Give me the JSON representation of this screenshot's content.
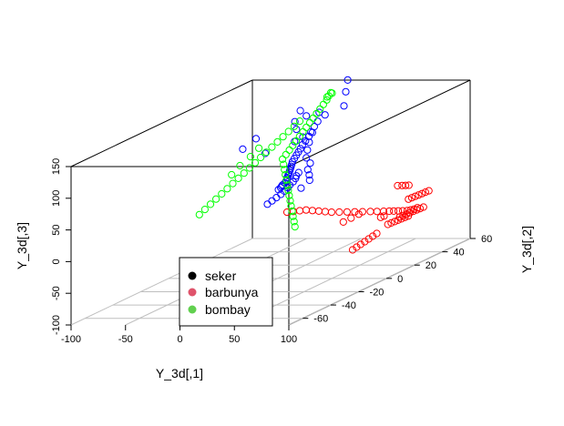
{
  "chart_data": {
    "type": "scatter",
    "projection": "3d",
    "xlabel": "Y_3d[,1]",
    "ylabel": "Y_3d[,2]",
    "zlabel": "Y_3d[,3]",
    "xlim": [
      -100,
      100
    ],
    "ylim": [
      -70,
      60
    ],
    "zlim": [
      -100,
      150
    ],
    "x_ticks": [
      "-100",
      "-50",
      "0",
      "50",
      "100"
    ],
    "y_ticks": [
      "-60",
      "-40",
      "-20",
      "0",
      "20",
      "40",
      "60"
    ],
    "z_ticks": [
      "-100",
      "-50",
      "0",
      "50",
      "100",
      "150"
    ],
    "grid": true,
    "legend_position": "bottom-center",
    "series": [
      {
        "name": "seker",
        "color": "#000000",
        "points": []
      },
      {
        "name": "barbunya",
        "color": "#DF536B",
        "points": []
      },
      {
        "name": "bombay",
        "color": "#61D04F",
        "points": []
      }
    ],
    "extra_series": [
      {
        "color": "#0000FF",
        "points": [
          [
            -9,
            41,
            115
          ],
          [
            -8,
            35,
            111
          ],
          [
            -6,
            31,
            107
          ],
          [
            -4,
            27,
            103
          ],
          [
            -2,
            24,
            99
          ],
          [
            0,
            20,
            96
          ],
          [
            1,
            17,
            93
          ],
          [
            3,
            14,
            90
          ],
          [
            5,
            11,
            88
          ],
          [
            7,
            8,
            86
          ],
          [
            9,
            5,
            84
          ],
          [
            11,
            2,
            82
          ],
          [
            13,
            0,
            80
          ],
          [
            15,
            -2,
            79
          ],
          [
            17,
            -4,
            78
          ],
          [
            19,
            -6,
            77
          ],
          [
            21,
            -8,
            76
          ],
          [
            23,
            -10,
            75
          ],
          [
            25,
            -12,
            75
          ],
          [
            28,
            -15,
            75
          ],
          [
            32,
            -18,
            76
          ],
          [
            36,
            -22,
            77
          ],
          [
            40,
            -26,
            78
          ],
          [
            43,
            -30,
            79
          ],
          [
            46,
            -33,
            80
          ],
          [
            49,
            -36,
            81
          ],
          [
            52,
            -40,
            82
          ],
          [
            45,
            -20,
            88
          ],
          [
            48,
            -24,
            87
          ],
          [
            51,
            -27,
            86
          ],
          [
            54,
            -31,
            85
          ],
          [
            56,
            -35,
            84
          ],
          [
            58,
            -38,
            83
          ],
          [
            60,
            -42,
            82
          ],
          [
            62,
            -46,
            81
          ],
          [
            63,
            -50,
            80
          ],
          [
            64,
            -54,
            79
          ],
          [
            65,
            -58,
            78
          ],
          [
            -12,
            30,
            125
          ],
          [
            -20,
            28,
            118
          ],
          [
            -16,
            26,
            108
          ],
          [
            -13,
            40,
            120
          ],
          [
            -24,
            35,
            128
          ],
          [
            -10,
            20,
            95
          ],
          [
            -5,
            22,
            100
          ],
          [
            0,
            25,
            104
          ],
          [
            6,
            18,
            96
          ],
          [
            12,
            12,
            90
          ],
          [
            20,
            5,
            85
          ],
          [
            30,
            0,
            82
          ],
          [
            38,
            -8,
            80
          ],
          [
            47,
            -14,
            78
          ],
          [
            55,
            -20,
            76
          ],
          [
            60,
            -30,
            74
          ],
          [
            2,
            46,
            124
          ],
          [
            -4,
            52,
            140
          ],
          [
            -15,
            62,
            148
          ],
          [
            4,
            -12,
            110
          ],
          [
            -30,
            8,
            112
          ],
          [
            -32,
            0,
            104
          ]
        ]
      },
      {
        "color": "#FF0000",
        "points": [
          [
            90,
            30,
            -20
          ],
          [
            92,
            26,
            -18
          ],
          [
            94,
            22,
            -15
          ],
          [
            96,
            18,
            -12
          ],
          [
            97,
            14,
            -8
          ],
          [
            98,
            10,
            -4
          ],
          [
            99,
            6,
            0
          ],
          [
            100,
            2,
            4
          ],
          [
            100,
            -2,
            8
          ],
          [
            99,
            -6,
            12
          ],
          [
            98,
            -10,
            16
          ],
          [
            96,
            -14,
            20
          ],
          [
            94,
            -18,
            24
          ],
          [
            92,
            -22,
            28
          ],
          [
            90,
            -26,
            32
          ],
          [
            88,
            -30,
            36
          ],
          [
            86,
            -33,
            40
          ],
          [
            84,
            -36,
            44
          ],
          [
            82,
            -39,
            48
          ],
          [
            80,
            -42,
            52
          ],
          [
            78,
            -45,
            54
          ],
          [
            76,
            -48,
            56
          ],
          [
            74,
            -51,
            58
          ],
          [
            80,
            46,
            -10
          ],
          [
            82,
            42,
            -8
          ],
          [
            84,
            38,
            -6
          ],
          [
            86,
            34,
            -4
          ],
          [
            88,
            30,
            -2
          ],
          [
            90,
            26,
            0
          ],
          [
            92,
            22,
            2
          ],
          [
            70,
            50,
            -40
          ],
          [
            72,
            46,
            -38
          ],
          [
            74,
            42,
            -36
          ],
          [
            76,
            38,
            -34
          ],
          [
            78,
            34,
            -32
          ],
          [
            80,
            30,
            -30
          ],
          [
            82,
            26,
            -28
          ],
          [
            84,
            22,
            -26
          ],
          [
            60,
            42,
            -50
          ],
          [
            62,
            38,
            -48
          ],
          [
            64,
            34,
            -46
          ],
          [
            66,
            30,
            -44
          ],
          [
            68,
            26,
            -42
          ],
          [
            58,
            46,
            -52
          ],
          [
            56,
            50,
            -54
          ],
          [
            86,
            -20,
            10
          ],
          [
            88,
            -16,
            12
          ],
          [
            90,
            -12,
            14
          ],
          [
            85,
            10,
            -12
          ],
          [
            87,
            6,
            -10
          ],
          [
            95,
            20,
            26
          ],
          [
            97,
            16,
            30
          ],
          [
            99,
            12,
            34
          ],
          [
            100,
            8,
            38
          ],
          [
            68,
            18,
            -48
          ],
          [
            72,
            12,
            -46
          ],
          [
            76,
            6,
            -44
          ],
          [
            80,
            0,
            -42
          ],
          [
            84,
            -6,
            -40
          ],
          [
            88,
            -12,
            -38
          ],
          [
            92,
            -18,
            -36
          ]
        ]
      },
      {
        "color": "#00FF00",
        "points": [
          [
            -36,
            44,
            102
          ],
          [
            -36,
            40,
            98
          ],
          [
            -36,
            36,
            94
          ],
          [
            -36,
            32,
            90
          ],
          [
            -36,
            28,
            86
          ],
          [
            -36,
            24,
            82
          ],
          [
            -36,
            20,
            78
          ],
          [
            -36,
            16,
            74
          ],
          [
            -36,
            12,
            70
          ],
          [
            -36,
            8,
            66
          ],
          [
            -36,
            4,
            62
          ],
          [
            -36,
            0,
            58
          ],
          [
            -36,
            -4,
            54
          ],
          [
            -36,
            -8,
            50
          ],
          [
            -36,
            -12,
            46
          ],
          [
            -36,
            -16,
            42
          ],
          [
            -36,
            -20,
            38
          ],
          [
            -36,
            -24,
            34
          ],
          [
            -36,
            -28,
            30
          ],
          [
            -28,
            60,
            130
          ],
          [
            -26,
            57,
            128
          ],
          [
            -24,
            54,
            125
          ],
          [
            -22,
            50,
            122
          ],
          [
            -20,
            46,
            119
          ],
          [
            -18,
            42,
            116
          ],
          [
            -16,
            38,
            113
          ],
          [
            -14,
            34,
            110
          ],
          [
            -12,
            30,
            107
          ],
          [
            -10,
            26,
            104
          ],
          [
            -8,
            22,
            101
          ],
          [
            -6,
            18,
            98
          ],
          [
            -4,
            14,
            95
          ],
          [
            -2,
            10,
            92
          ],
          [
            0,
            6,
            89
          ],
          [
            2,
            2,
            86
          ],
          [
            8,
            -2,
            82
          ],
          [
            14,
            -6,
            78
          ],
          [
            20,
            -10,
            74
          ],
          [
            26,
            -14,
            70
          ],
          [
            32,
            -18,
            66
          ],
          [
            38,
            -22,
            62
          ],
          [
            44,
            -26,
            58
          ],
          [
            50,
            -30,
            54
          ],
          [
            56,
            -34,
            50
          ],
          [
            62,
            -38,
            46
          ],
          [
            68,
            -42,
            42
          ],
          [
            74,
            -46,
            38
          ],
          [
            80,
            -50,
            34
          ],
          [
            -14,
            50,
            140
          ],
          [
            -16,
            48,
            136
          ],
          [
            -30,
            10,
            95
          ],
          [
            -30,
            4,
            88
          ],
          [
            -32,
            -2,
            80
          ],
          [
            -32,
            -8,
            72
          ]
        ]
      }
    ]
  }
}
